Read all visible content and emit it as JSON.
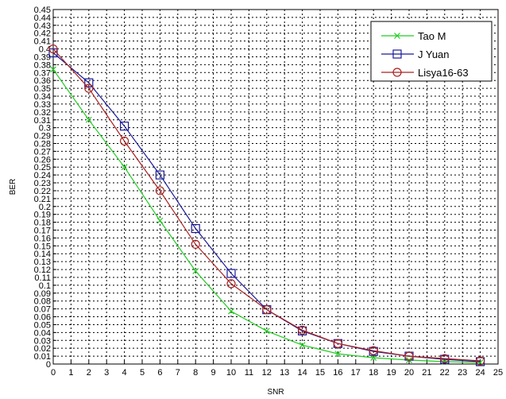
{
  "chart_data": {
    "type": "line",
    "xlabel": "SNR",
    "ylabel": "BER",
    "xlim": [
      0,
      25
    ],
    "ylim": [
      0,
      0.45
    ],
    "xticks": [
      0,
      1,
      2,
      3,
      4,
      5,
      6,
      7,
      8,
      9,
      10,
      11,
      12,
      13,
      14,
      15,
      16,
      17,
      18,
      19,
      20,
      21,
      22,
      23,
      24,
      25
    ],
    "xtick_labels": [
      "0",
      "1",
      "2",
      "3",
      "4",
      "5",
      "6",
      "7",
      "8",
      "9",
      "10",
      "11",
      "12",
      "13",
      "14",
      "15",
      "16",
      "17",
      "18",
      "19",
      "20",
      "21",
      "22",
      "23",
      "24",
      "25"
    ],
    "yticks": [
      0,
      0.01,
      0.02,
      0.03,
      0.04,
      0.05,
      0.06,
      0.07,
      0.08,
      0.09,
      0.1,
      0.11,
      0.12,
      0.13,
      0.14,
      0.15,
      0.16,
      0.17,
      0.18,
      0.19,
      0.2,
      0.21,
      0.22,
      0.23,
      0.24,
      0.25,
      0.26,
      0.27,
      0.28,
      0.29,
      0.3,
      0.31,
      0.32,
      0.33,
      0.34,
      0.35,
      0.36,
      0.37,
      0.38,
      0.39,
      0.4,
      0.41,
      0.42,
      0.43,
      0.44,
      0.45
    ],
    "ytick_labels": [
      "0",
      "0.01",
      "0.02",
      "0.03",
      "0.04",
      "0.05",
      "0.06",
      "0.07",
      "0.08",
      "0.09",
      "0.1",
      "0.11",
      "0.12",
      "0.13",
      "0.14",
      "0.15",
      "0.16",
      "0.17",
      "0.18",
      "0.19",
      "0.2",
      "0.21",
      "0.22",
      "0.23",
      "0.24",
      "0.25",
      "0.26",
      "0.27",
      "0.28",
      "0.29",
      "0.3",
      "0.31",
      "0.32",
      "0.33",
      "0.34",
      "0.35",
      "0.36",
      "0.37",
      "0.38",
      "0.39",
      "0.4",
      "0.41",
      "0.42",
      "0.43",
      "0.44",
      "0.45"
    ],
    "grid": true,
    "legend_position": "top-right",
    "x": [
      0,
      2,
      4,
      6,
      8,
      10,
      12,
      14,
      16,
      18,
      20,
      22,
      24
    ],
    "series": [
      {
        "name": "Tao M",
        "color": "#22cc22",
        "marker": "x",
        "values": [
          0.374,
          0.31,
          0.25,
          0.182,
          0.118,
          0.067,
          0.042,
          0.024,
          0.013,
          0.008,
          0.005,
          0.003,
          0.002
        ]
      },
      {
        "name": "J Yuan",
        "color": "#1a1a99",
        "marker": "square",
        "values": [
          0.395,
          0.357,
          0.302,
          0.24,
          0.172,
          0.115,
          0.069,
          0.042,
          0.026,
          0.016,
          0.01,
          0.006,
          0.003
        ]
      },
      {
        "name": "Lisya16-63",
        "color": "#aa2222",
        "marker": "circle",
        "values": [
          0.4,
          0.35,
          0.283,
          0.22,
          0.152,
          0.102,
          0.069,
          0.043,
          0.026,
          0.017,
          0.01,
          0.007,
          0.004
        ]
      }
    ]
  }
}
